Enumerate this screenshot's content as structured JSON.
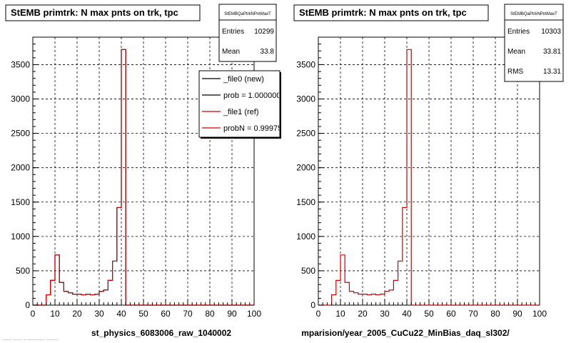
{
  "footer_text": "~~~ ~~~ ~ ~~~~~~ ~~~~",
  "chart_data": [
    {
      "type": "histogram",
      "title": "StEMB primtrk: N max pnts on trk, tpc",
      "xlabel": "st_physics_6083006_raw_1040002",
      "xlim": [
        0,
        100
      ],
      "ylim": [
        0,
        3900
      ],
      "xticks": [
        0,
        10,
        20,
        30,
        40,
        50,
        60,
        70,
        80,
        90,
        100
      ],
      "yticks": [
        0,
        500,
        1000,
        1500,
        2000,
        2500,
        3000,
        3500
      ],
      "grid": true,
      "stats": {
        "name": "StEMBQaPtrkNPntMaxT",
        "rows": [
          {
            "label": "Entries",
            "value": "10299"
          },
          {
            "label": "Mean",
            "value": "33.8"
          }
        ]
      },
      "legend": {
        "placement": "top-right",
        "entries": [
          {
            "label": "_file0 (new)",
            "color": "#000000"
          },
          {
            "label": "prob = 1.000000",
            "color": "#000000"
          },
          {
            "label": "_file1 (ref)",
            "color": "#cc0000"
          },
          {
            "label": "probN = 0.99975",
            "color": "#cc0000"
          }
        ]
      },
      "bin_width": 2,
      "bin_start": 0,
      "series": [
        {
          "color": "#000000",
          "values": [
            0,
            0,
            0,
            150,
            360,
            730,
            330,
            200,
            180,
            160,
            160,
            150,
            160,
            150,
            160,
            200,
            220,
            360,
            640,
            1420,
            3720,
            0,
            0,
            0,
            0,
            0,
            0,
            0,
            0,
            0,
            0,
            0,
            0,
            0,
            0,
            0,
            0,
            0,
            0,
            0,
            0,
            0,
            0,
            0,
            0,
            0,
            0,
            0,
            0,
            0
          ]
        },
        {
          "color": "#cc0000",
          "values": [
            0,
            0,
            0,
            150,
            360,
            730,
            330,
            200,
            180,
            160,
            160,
            150,
            160,
            150,
            160,
            200,
            220,
            360,
            640,
            1420,
            3720,
            0,
            0,
            0,
            0,
            0,
            0,
            0,
            0,
            0,
            0,
            0,
            0,
            0,
            0,
            0,
            0,
            0,
            0,
            0,
            0,
            0,
            0,
            0,
            0,
            0,
            0,
            0,
            0,
            0
          ]
        }
      ]
    },
    {
      "type": "histogram",
      "title": "StEMB primtrk: N max pnts on trk, tpc",
      "xlabel": "mparision/year_2005_CuCu22_MinBias_daq_sl302/",
      "xlim": [
        0,
        100
      ],
      "ylim": [
        0,
        3900
      ],
      "xticks": [
        0,
        10,
        20,
        30,
        40,
        50,
        60,
        70,
        80,
        90,
        100
      ],
      "yticks": [
        0,
        500,
        1000,
        1500,
        2000,
        2500,
        3000,
        3500
      ],
      "grid": true,
      "stats": {
        "name": "StEMBQaPtrkNPntMaxT",
        "rows": [
          {
            "label": "Entries",
            "value": "10303"
          },
          {
            "label": "Mean",
            "value": "33.81"
          },
          {
            "label": "RMS",
            "value": "13.31"
          }
        ]
      },
      "legend": null,
      "bin_width": 2,
      "bin_start": 0,
      "series": [
        {
          "color": "#cc0000",
          "values": [
            0,
            0,
            0,
            150,
            360,
            730,
            330,
            200,
            180,
            160,
            160,
            150,
            160,
            150,
            160,
            200,
            220,
            360,
            640,
            1420,
            3720,
            0,
            0,
            0,
            0,
            0,
            0,
            0,
            0,
            0,
            0,
            0,
            0,
            0,
            0,
            0,
            0,
            0,
            0,
            0,
            0,
            0,
            0,
            0,
            0,
            0,
            0,
            0,
            0,
            0
          ]
        }
      ]
    }
  ]
}
